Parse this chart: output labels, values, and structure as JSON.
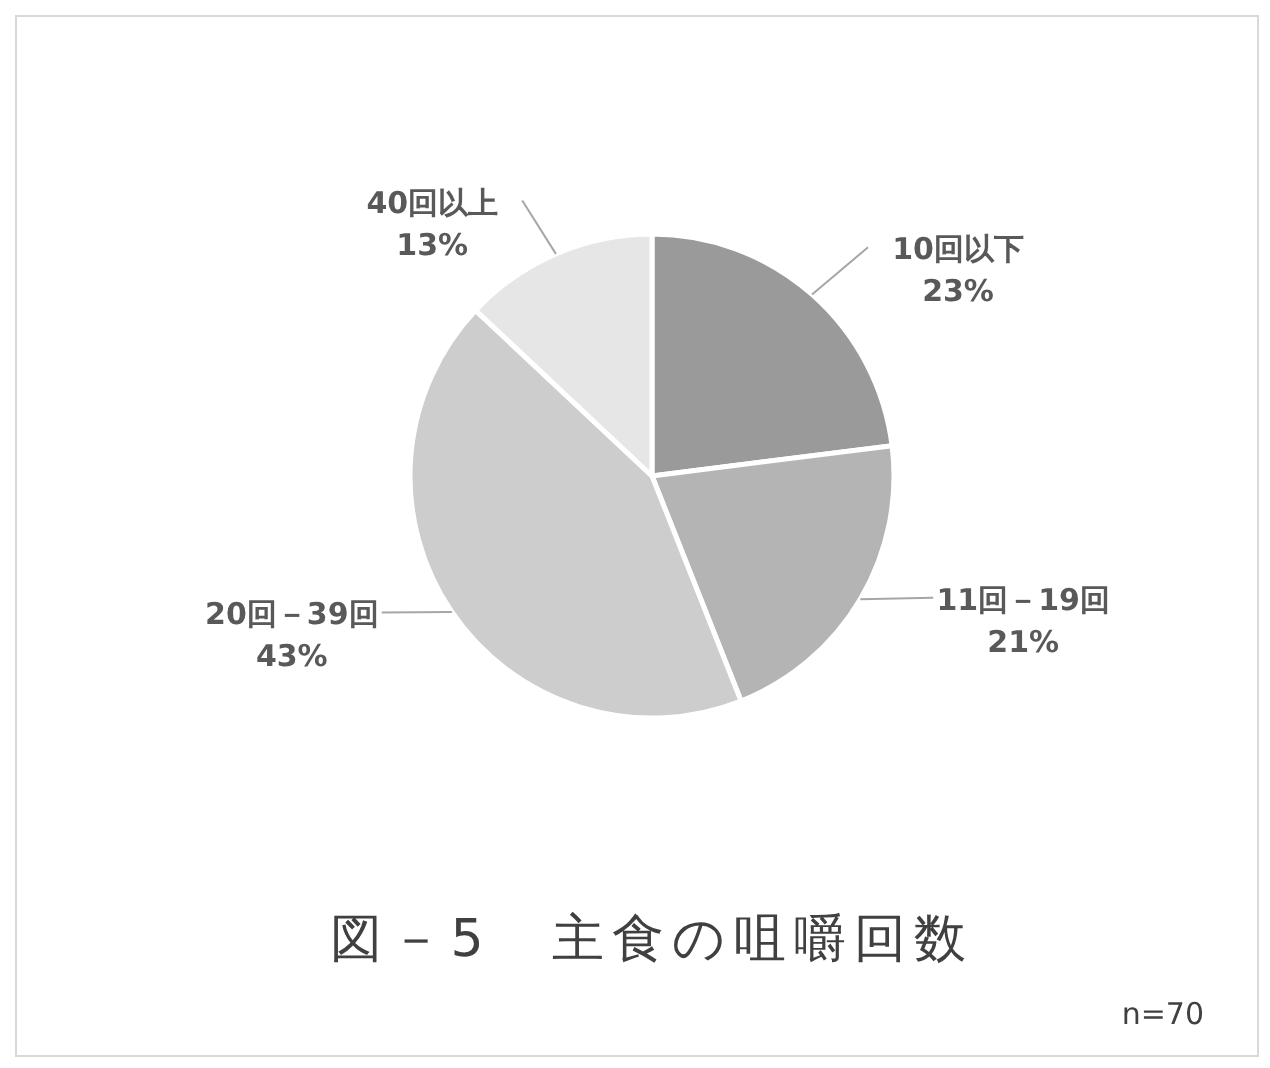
{
  "chart_data": {
    "type": "pie",
    "title": "図－5　主食の咀嚼回数",
    "categories": [
      "10回以下",
      "11回－19回",
      "20回－39回",
      "40回以上"
    ],
    "values": [
      23,
      21,
      43,
      13
    ],
    "colors": [
      "#9a9a9a",
      "#b4b4b4",
      "#cdcdcd",
      "#e6e6e6"
    ],
    "value_labels": [
      "23%",
      "21%",
      "43%",
      "13%"
    ],
    "annotations": [
      "n=70"
    ]
  }
}
